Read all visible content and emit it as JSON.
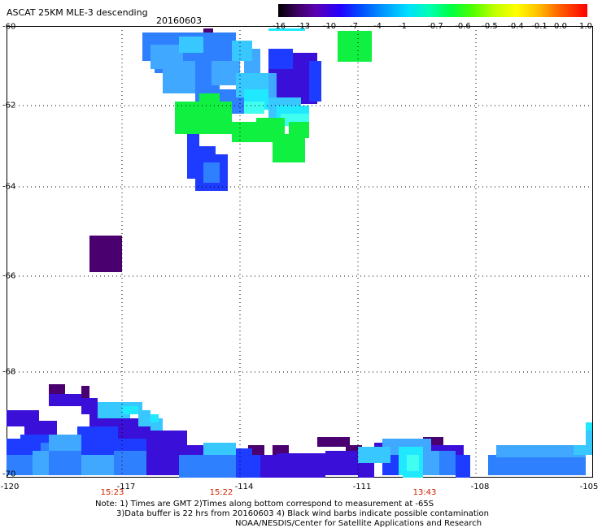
{
  "header": {
    "title": "ASCAT 25KM MLE-3 descending",
    "date": "20160603"
  },
  "colorbar": {
    "labels": [
      "-16",
      "-13",
      "-10",
      "-7",
      "-4",
      "-1",
      "-0.7",
      "-0.6",
      "-0.5",
      "-0.4",
      "-0.1",
      "0.0",
      "1.0"
    ]
  },
  "axes": {
    "lat_labels": [
      "-60",
      "-62",
      "-64",
      "-66",
      "-68",
      "-70"
    ],
    "lon_labels": [
      "-120",
      "-117",
      "-114",
      "-111",
      "-108",
      "-105"
    ]
  },
  "times": [
    "15:23",
    "15:22",
    "13:43"
  ],
  "notes": [
    "Note: 1) Times are GMT 2)Times along bottom correspond to measurement at -65S",
    "3)Data buffer is 22 hrs from 20160603 4) Black wind barbs indicate possible contamination",
    "NOAA/NESDIS/Center for Satellite Applications and Research"
  ],
  "palette": {
    "darkpurple": "#4b0070",
    "purple": "#3a10d8",
    "blue": "#1e3cff",
    "blue2": "#2a64ff",
    "midblue": "#2f80ff",
    "lightblue": "#40a8ff",
    "skyblue": "#38c8ff",
    "cyan": "#20e8ff",
    "aqua": "#40fff0",
    "green": "#10f040"
  },
  "swaths": [
    {
      "color": "darkpurple",
      "cells": [
        [
          250,
          35,
          12,
          12
        ],
        [
          110,
          290,
          40,
          45
        ],
        [
          175,
          545,
          20,
          25
        ],
        [
          305,
          548,
          20,
          12
        ],
        [
          335,
          548,
          20,
          12
        ],
        [
          390,
          538,
          40,
          12
        ],
        [
          425,
          548,
          20,
          12
        ],
        [
          520,
          538,
          25,
          12
        ],
        [
          60,
          473,
          20,
          20
        ],
        [
          100,
          475,
          10,
          20
        ]
      ]
    },
    {
      "color": "purple",
      "cells": [
        [
          330,
          68,
          60,
          60
        ],
        [
          350,
          65,
          40,
          20
        ],
        [
          60,
          485,
          40,
          15
        ],
        [
          100,
          490,
          20,
          20
        ],
        [
          8,
          505,
          40,
          20
        ],
        [
          30,
          518,
          40,
          35
        ],
        [
          110,
          505,
          40,
          35
        ],
        [
          150,
          515,
          40,
          35
        ],
        [
          170,
          530,
          60,
          55
        ],
        [
          230,
          548,
          60,
          40
        ],
        [
          290,
          560,
          50,
          28
        ],
        [
          340,
          558,
          60,
          30
        ],
        [
          400,
          555,
          40,
          30
        ],
        [
          440,
          560,
          20,
          28
        ],
        [
          460,
          545,
          60,
          15
        ],
        [
          530,
          548,
          40,
          15
        ]
      ]
    },
    {
      "color": "blue",
      "cells": [
        [
          230,
          165,
          15,
          55
        ],
        [
          240,
          180,
          25,
          55
        ],
        [
          265,
          190,
          15,
          45
        ],
        [
          330,
          60,
          30,
          25
        ],
        [
          380,
          75,
          15,
          50
        ],
        [
          8,
          540,
          20,
          40
        ],
        [
          25,
          535,
          35,
          50
        ],
        [
          95,
          525,
          50,
          60
        ],
        [
          140,
          540,
          40,
          45
        ],
        [
          290,
          552,
          20,
          36
        ],
        [
          300,
          560,
          20,
          28
        ],
        [
          470,
          555,
          20,
          30
        ],
        [
          560,
          560,
          18,
          28
        ],
        [
          610,
          555,
          110,
          30
        ]
      ]
    },
    {
      "color": "midblue",
      "cells": [
        [
          175,
          40,
          60,
          35
        ],
        [
          230,
          40,
          60,
          50
        ],
        [
          190,
          60,
          40,
          30
        ],
        [
          255,
          60,
          35,
          30
        ],
        [
          240,
          90,
          30,
          40
        ],
        [
          270,
          110,
          30,
          30
        ],
        [
          250,
          200,
          20,
          25
        ],
        [
          8,
          560,
          40,
          25
        ],
        [
          50,
          545,
          50,
          40
        ],
        [
          140,
          555,
          40,
          30
        ],
        [
          220,
          560,
          30,
          28
        ],
        [
          250,
          560,
          40,
          28
        ],
        [
          540,
          555,
          20,
          30
        ],
        [
          600,
          560,
          120,
          25
        ]
      ]
    },
    {
      "color": "lightblue",
      "cells": [
        [
          200,
          75,
          40,
          40
        ],
        [
          185,
          55,
          40,
          30
        ],
        [
          260,
          75,
          35,
          30
        ],
        [
          300,
          60,
          20,
          30
        ],
        [
          320,
          90,
          20,
          30
        ],
        [
          300,
          95,
          15,
          35
        ],
        [
          60,
          535,
          40,
          20
        ],
        [
          40,
          555,
          20,
          30
        ],
        [
          100,
          560,
          40,
          25
        ],
        [
          470,
          540,
          60,
          20
        ],
        [
          520,
          555,
          20,
          30
        ],
        [
          610,
          548,
          110,
          15
        ]
      ]
    },
    {
      "color": "skyblue",
      "cells": [
        [
          220,
          45,
          30,
          20
        ],
        [
          285,
          50,
          25,
          25
        ],
        [
          290,
          90,
          40,
          30
        ],
        [
          330,
          120,
          40,
          30
        ],
        [
          120,
          495,
          40,
          20
        ],
        [
          150,
          495,
          25,
          15
        ],
        [
          170,
          505,
          15,
          20
        ],
        [
          185,
          515,
          15,
          15
        ],
        [
          250,
          545,
          40,
          15
        ],
        [
          440,
          550,
          40,
          20
        ],
        [
          500,
          550,
          20,
          20
        ],
        [
          720,
          527,
          8,
          25
        ],
        [
          705,
          548,
          23,
          12
        ]
      ]
    },
    {
      "color": "cyan",
      "cells": [
        [
          300,
          110,
          30,
          25
        ],
        [
          340,
          130,
          40,
          20
        ],
        [
          490,
          550,
          30,
          35
        ],
        [
          495,
          570,
          25,
          18
        ],
        [
          150,
          500,
          20,
          10
        ],
        [
          185,
          510,
          10,
          10
        ],
        [
          720,
          520,
          8,
          10
        ],
        [
          330,
          35,
          45,
          3
        ]
      ]
    },
    {
      "color": "aqua",
      "cells": [
        [
          345,
          140,
          35,
          15
        ],
        [
          300,
          125,
          25,
          15
        ],
        [
          500,
          560,
          15,
          20
        ]
      ]
    },
    {
      "color": "green",
      "cells": [
        [
          215,
          125,
          70,
          40
        ],
        [
          245,
          115,
          25,
          20
        ],
        [
          285,
          150,
          30,
          25
        ],
        [
          315,
          145,
          35,
          30
        ],
        [
          335,
          165,
          40,
          35
        ],
        [
          355,
          150,
          25,
          20
        ],
        [
          415,
          38,
          42,
          38
        ]
      ]
    }
  ]
}
